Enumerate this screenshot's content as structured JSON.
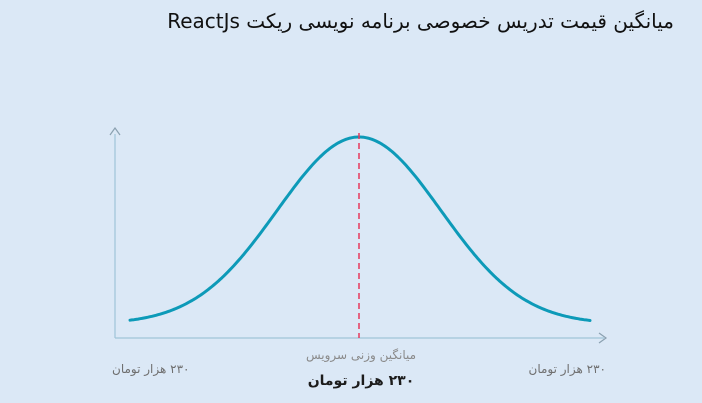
{
  "title": "میانگین قیمت تدریس خصوصی برنامه نویسی ریکت ReactJs",
  "colors": {
    "background": "#dbe8f6",
    "curve": "#0d9ab8",
    "axis": "#9fc4d8",
    "axis_arrow": "#8aa0b0",
    "mean_line": "#e8385c"
  },
  "labels": {
    "left_price": "۲۳۰ هزار تومان",
    "right_price": "۲۳۰ هزار تومان",
    "mean_caption": "میانگین وزنی سرویس",
    "mean_value": "۲۳۰ هزار تومان"
  },
  "chart_data": {
    "type": "area",
    "shape": "normal-distribution",
    "title": "میانگین قیمت تدریس خصوصی برنامه نویسی ریکت ReactJs",
    "x_labels": [
      "۲۳۰ هزار تومان",
      "۲۳۰ هزار تومان"
    ],
    "mean_label": "میانگین وزنی سرویس",
    "mean_value_label": "۲۳۰ هزار تومان",
    "mean_marker": "dashed vertical line",
    "grid": false,
    "legend": "none"
  }
}
